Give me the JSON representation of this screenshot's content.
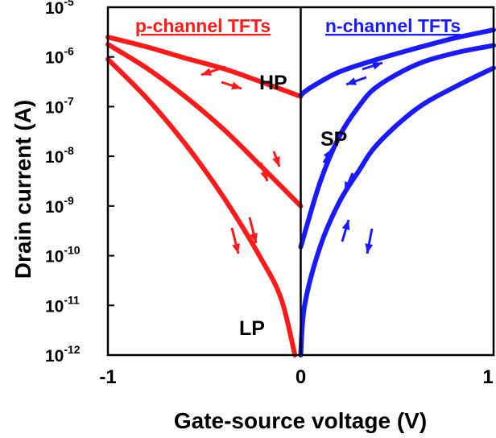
{
  "chart_data": {
    "type": "line",
    "title": "",
    "xlabel": "Gate-source voltage (V)",
    "ylabel": "Drain current (A)",
    "xlim": [
      -1,
      1
    ],
    "ylim_log10": [
      -12,
      -5
    ],
    "y_scale": "log",
    "x_ticks": [
      "-1",
      "0",
      "1"
    ],
    "y_ticks": [
      {
        "base": "10",
        "exp": "-5"
      },
      {
        "base": "10",
        "exp": "-6"
      },
      {
        "base": "10",
        "exp": "-7"
      },
      {
        "base": "10",
        "exp": "-8"
      },
      {
        "base": "10",
        "exp": "-9"
      },
      {
        "base": "10",
        "exp": "-10"
      },
      {
        "base": "10",
        "exp": "-11"
      },
      {
        "base": "10",
        "exp": "-12"
      }
    ],
    "region_labels": {
      "p": "p-channel TFTs",
      "n": "n-channel TFTs"
    },
    "colors": {
      "p": "#ff1a1a",
      "n": "#1a1aff",
      "axis": "#000000"
    },
    "annotations": [
      "HP",
      "SP",
      "LP"
    ],
    "series": [
      {
        "group": "p",
        "x": [
          -1,
          -0.8,
          -0.6,
          -0.4,
          -0.2,
          0
        ],
        "y": [
          2.5e-06,
          1.6e-06,
          9.5e-07,
          5.8e-07,
          3.1e-07,
          1.6e-07
        ]
      },
      {
        "group": "p",
        "x": [
          -1,
          -0.8,
          -0.6,
          -0.4,
          -0.2,
          0
        ],
        "y": [
          1.8e-06,
          6e-07,
          1.6e-07,
          3.5e-08,
          6e-09,
          1e-09
        ]
      },
      {
        "group": "p",
        "x": [
          -1,
          -0.8,
          -0.6,
          -0.4,
          -0.2,
          -0.1,
          -0.03
        ],
        "y": [
          9e-07,
          1.5e-07,
          1.8e-08,
          1.5e-09,
          8e-11,
          1.3e-11,
          1e-12
        ]
      },
      {
        "group": "n",
        "x": [
          0,
          0.05,
          0.2,
          0.4,
          0.6,
          0.8,
          1
        ],
        "y": [
          1.7e-07,
          2.4e-07,
          5e-07,
          9e-07,
          1.5e-06,
          2.4e-06,
          3.5e-06
        ]
      },
      {
        "group": "n",
        "x": [
          0,
          0.1,
          0.2,
          0.3,
          0.4,
          0.6,
          0.8,
          1
        ],
        "y": [
          1.5e-10,
          3e-09,
          2.5e-08,
          1e-07,
          2.6e-07,
          7e-07,
          1.2e-06,
          1.7e-06
        ]
      },
      {
        "group": "n",
        "x": [
          0,
          0.02,
          0.1,
          0.2,
          0.3,
          0.4,
          0.6,
          0.8,
          1
        ],
        "y": [
          1e-12,
          1e-11,
          1.5e-10,
          1.2e-09,
          5e-09,
          1.8e-08,
          9e-08,
          2.5e-07,
          6e-07
        ]
      }
    ]
  }
}
